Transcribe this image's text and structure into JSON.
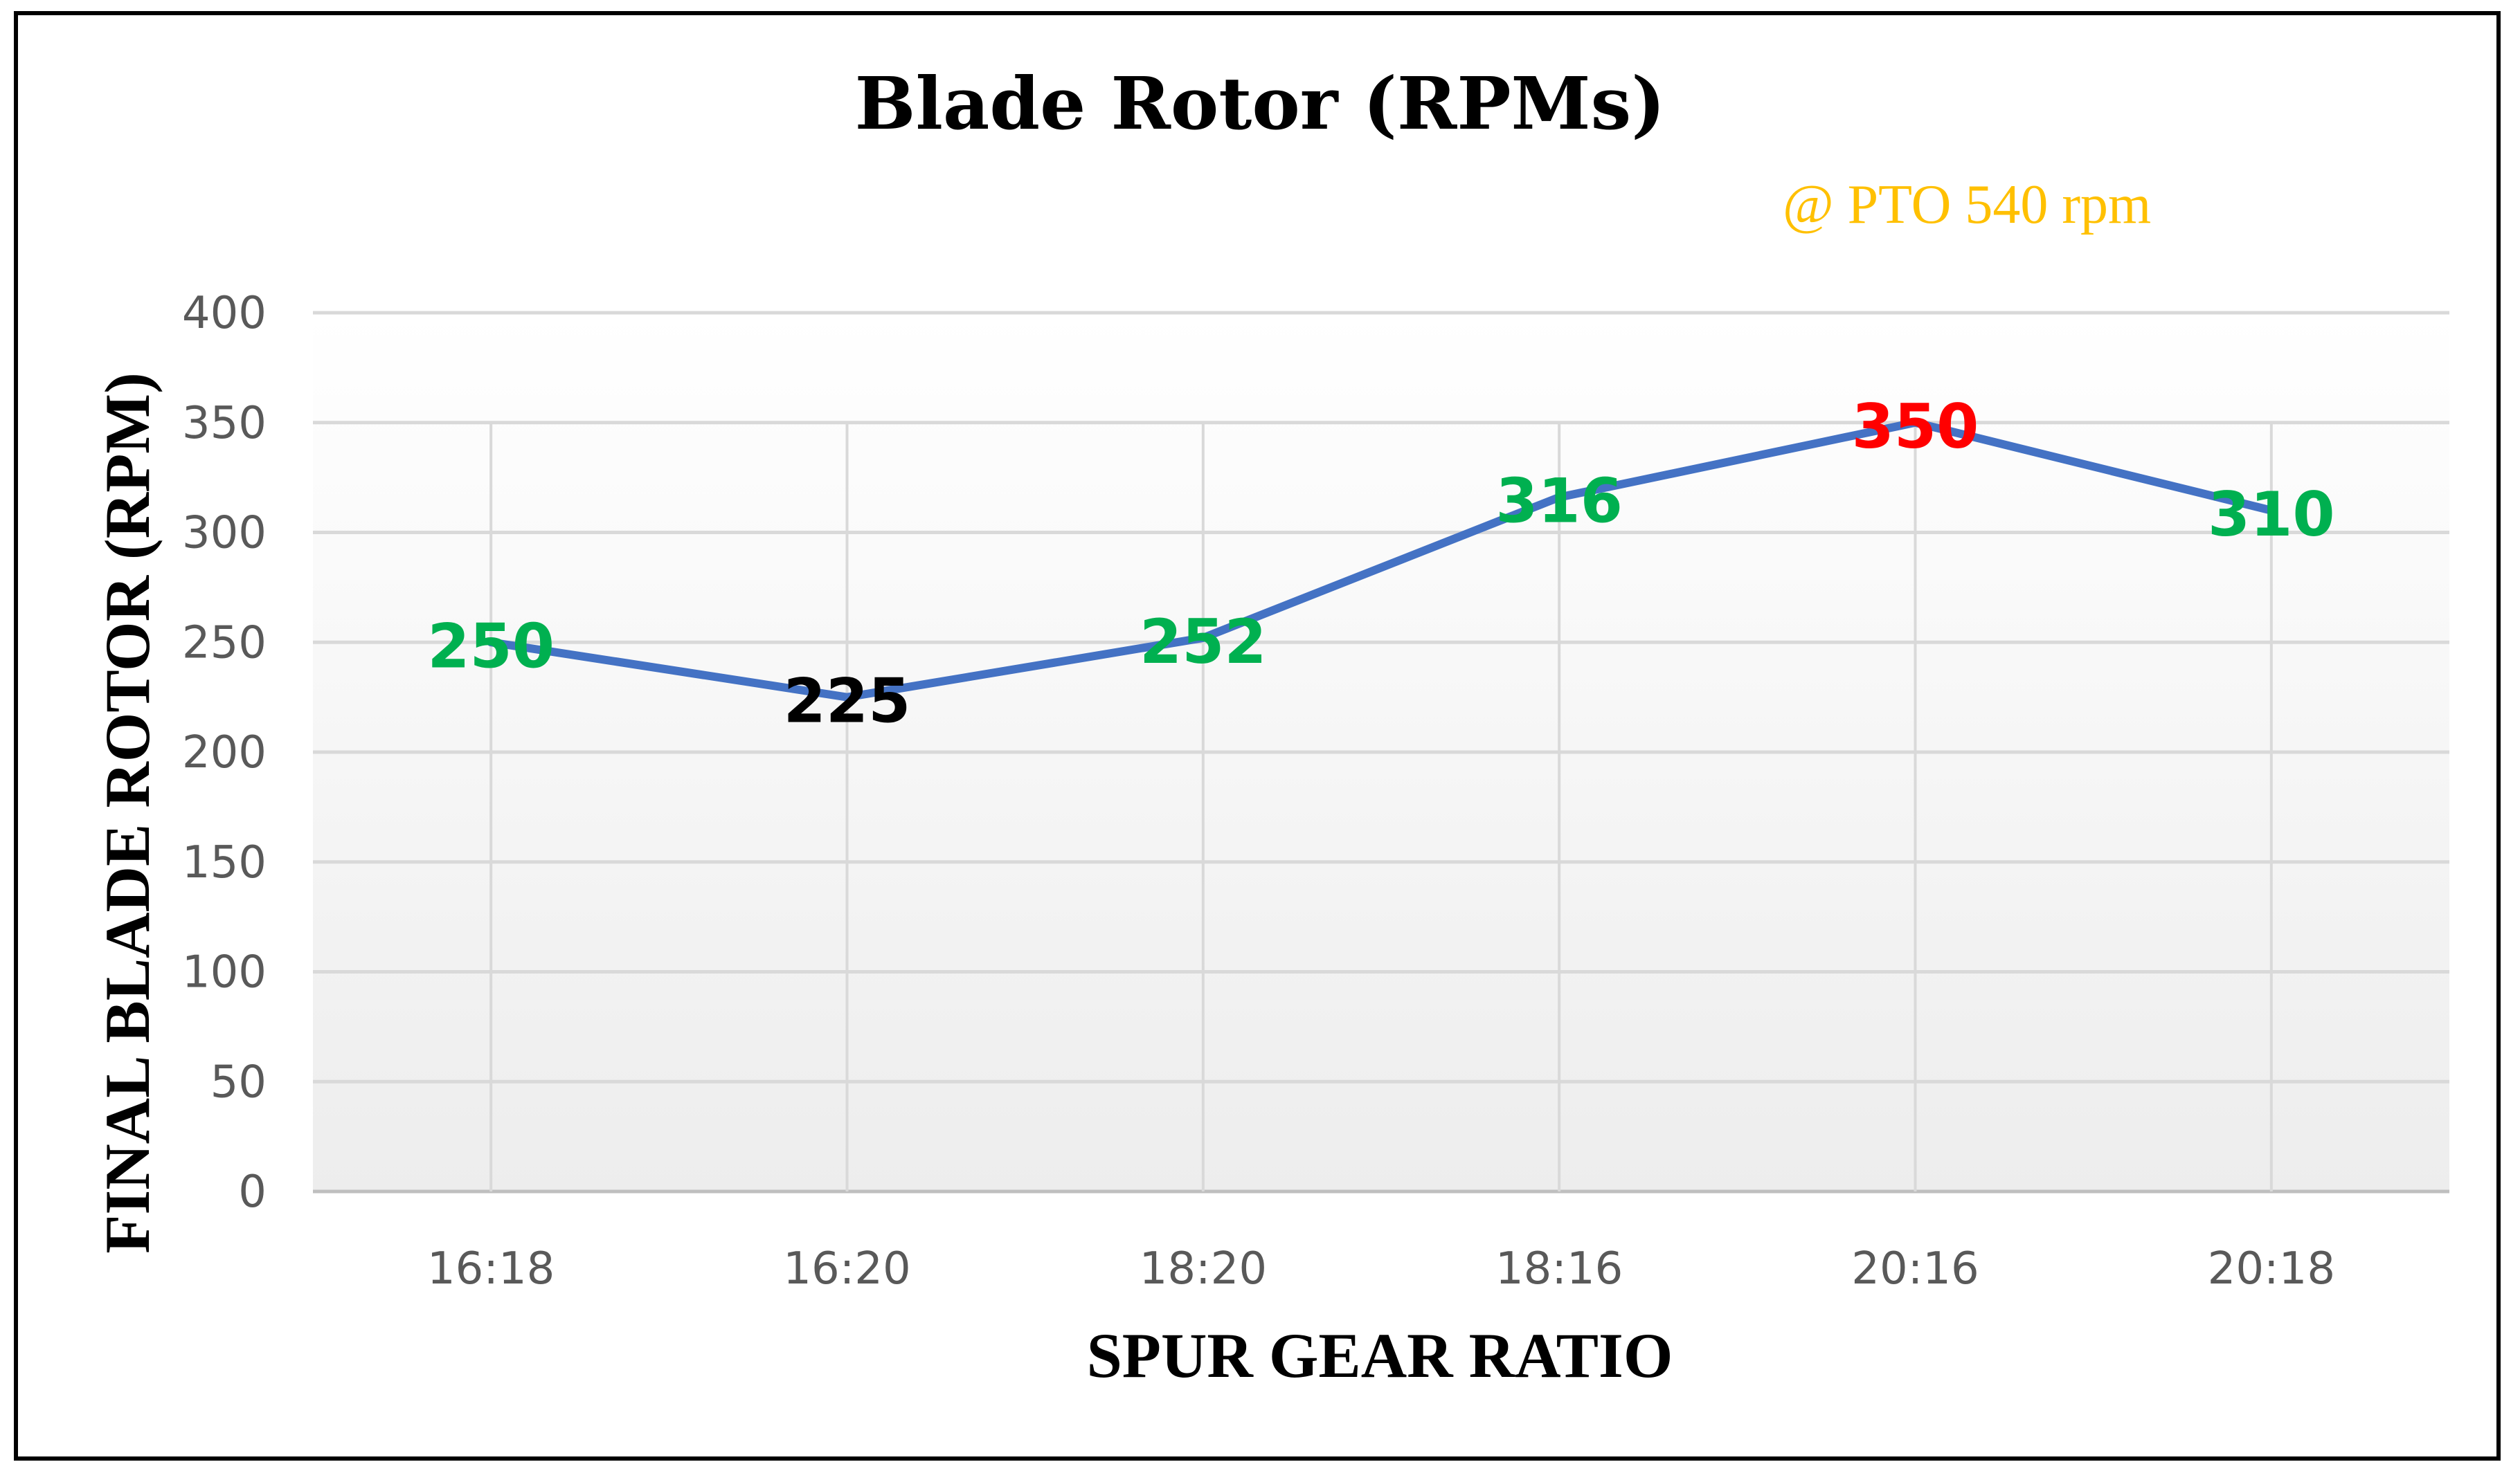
{
  "chart_data": {
    "type": "line",
    "title": "Blade Rotor (RPMs)",
    "annotation": "@ PTO 540 rpm",
    "xlabel": "SPUR GEAR RATIO",
    "ylabel": "FINAL BLADE ROTOR (RPM)",
    "categories": [
      "16:18",
      "16:20",
      "18:20",
      "18:16",
      "20:16",
      "20:18"
    ],
    "values": [
      250,
      225,
      252,
      316,
      350,
      310
    ],
    "data_labels": [
      "250",
      "225",
      "252",
      "316",
      "350",
      "310"
    ],
    "label_colors": [
      "#00b050",
      "#000000",
      "#00b050",
      "#00b050",
      "#ff0000",
      "#00b050"
    ],
    "ylim": [
      0,
      400
    ],
    "yticks": [
      0,
      50,
      100,
      150,
      200,
      250,
      300,
      350,
      400
    ],
    "grid": true,
    "line_color": "#4472c4",
    "annotation_color": "#ffc000"
  }
}
